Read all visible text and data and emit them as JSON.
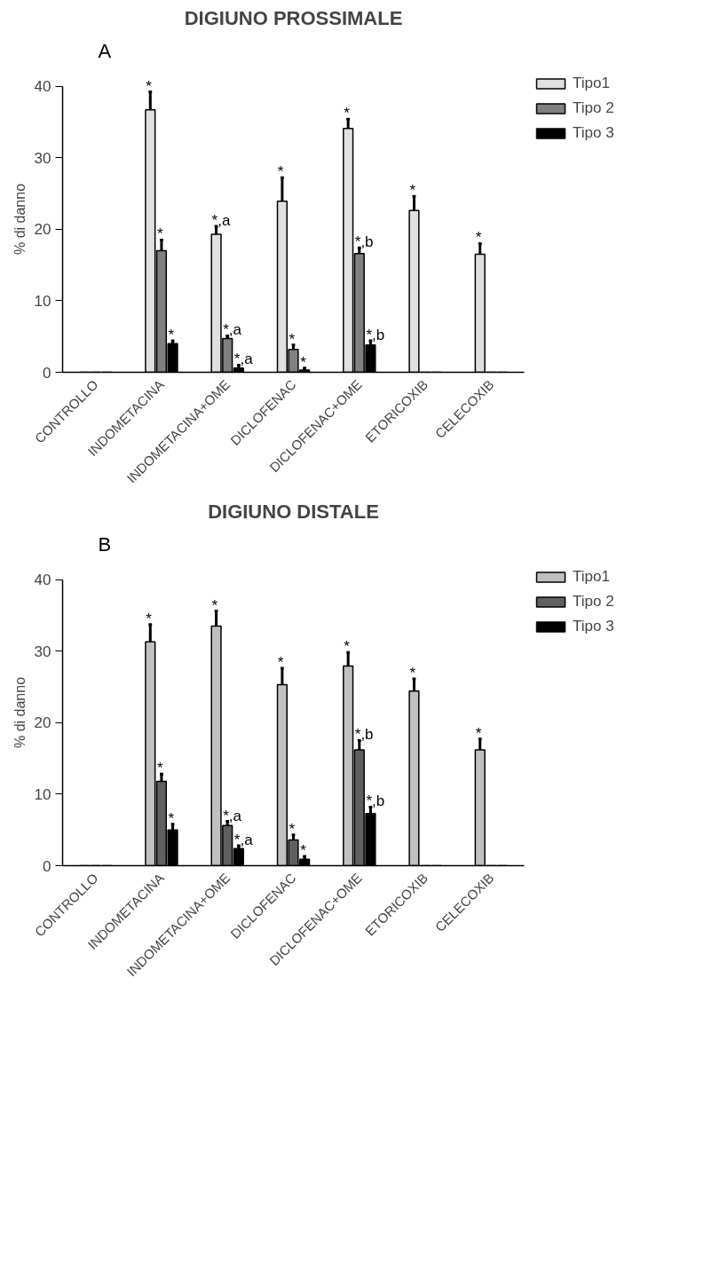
{
  "chart_data": [
    {
      "type": "bar",
      "title": "DIGIUNO PROSSIMALE",
      "annotations": [
        "A"
      ],
      "ylabel": "% di danno",
      "categories": [
        "CONTROLLO",
        "INDOMETACINA",
        "INDOMETACINA+OME",
        "DICLOFENAC",
        "DICLOFENAC+OME",
        "ETORICOXIB",
        "CELECOXIB"
      ],
      "ylim": [
        0,
        40
      ],
      "yticks": [
        0,
        10,
        20,
        30,
        40
      ],
      "grid": false,
      "legend": "right",
      "series": [
        {
          "name": "Tipo1",
          "color": "#e0e0e0",
          "values": [
            0,
            36.7,
            19.3,
            23.9,
            34.1,
            22.6,
            16.5
          ],
          "errors": [
            null,
            [
              36.7,
              39.2
            ],
            [
              19.3,
              20.4
            ],
            [
              23.9,
              27.2
            ],
            [
              34.1,
              35.4
            ],
            [
              22.6,
              24.6
            ],
            [
              16.5,
              18.0
            ]
          ],
          "value_labels": [
            null,
            "*",
            "*,a",
            "*",
            "*",
            "*",
            "*"
          ]
        },
        {
          "name": "Tipo 2",
          "color": "#808080",
          "values": [
            0,
            17.0,
            4.7,
            3.2,
            16.6,
            0,
            0
          ],
          "errors": [
            null,
            [
              17.0,
              18.5
            ],
            [
              4.7,
              5.1
            ],
            [
              3.2,
              3.8
            ],
            [
              16.6,
              17.4
            ],
            null,
            null
          ],
          "value_labels": [
            null,
            "*",
            "*,a",
            "*",
            "*,b",
            null,
            null
          ]
        },
        {
          "name": "Tipo 3",
          "color": "#000000",
          "values": [
            0,
            4.0,
            0.6,
            0.3,
            3.8,
            0,
            0
          ],
          "errors": [
            null,
            [
              4.0,
              4.4
            ],
            [
              0.6,
              1.0
            ],
            [
              0.3,
              0.6
            ],
            [
              3.8,
              4.4
            ],
            null,
            null
          ],
          "value_labels": [
            null,
            "*",
            "*,a",
            "*",
            "*,b",
            null,
            null
          ]
        }
      ]
    },
    {
      "type": "bar",
      "title": "DIGIUNO DISTALE",
      "annotations": [
        "B"
      ],
      "ylabel": "% di danno",
      "categories": [
        "CONTROLLO",
        "INDOMETACINA",
        "INDOMETACINA+OME",
        "DICLOFENAC",
        "DICLOFENAC+OME",
        "ETORICOXIB",
        "CELECOXIB"
      ],
      "ylim": [
        0,
        40
      ],
      "yticks": [
        0,
        10,
        20,
        30,
        40
      ],
      "grid": false,
      "legend": "right",
      "series": [
        {
          "name": "Tipo1",
          "color": "#c0c0c0",
          "values": [
            0,
            31.3,
            33.5,
            25.3,
            27.9,
            24.4,
            16.2
          ],
          "errors": [
            null,
            [
              31.3,
              33.7
            ],
            [
              33.5,
              35.6
            ],
            [
              25.3,
              27.6
            ],
            [
              27.9,
              29.8
            ],
            [
              24.4,
              26.1
            ],
            [
              16.2,
              17.7
            ]
          ],
          "value_labels": [
            null,
            "*",
            "*",
            "*",
            "*",
            "*",
            "*"
          ]
        },
        {
          "name": "Tipo 2",
          "color": "#606060",
          "values": [
            0,
            11.8,
            5.6,
            3.6,
            16.2,
            0,
            0
          ],
          "errors": [
            null,
            [
              11.8,
              12.8
            ],
            [
              5.6,
              6.2
            ],
            [
              3.6,
              4.3
            ],
            [
              16.2,
              17.5
            ],
            null,
            null
          ],
          "value_labels": [
            null,
            "*",
            "*,a",
            "*",
            "*,b",
            null,
            null
          ]
        },
        {
          "name": "Tipo 3",
          "color": "#000000",
          "values": [
            0,
            5.0,
            2.4,
            0.9,
            7.3,
            0,
            0
          ],
          "errors": [
            null,
            [
              5.0,
              5.8
            ],
            [
              2.4,
              2.8
            ],
            [
              0.9,
              1.3
            ],
            [
              7.3,
              8.2
            ],
            null,
            null
          ],
          "value_labels": [
            null,
            "*",
            "*,a",
            "*",
            "*,b",
            null,
            null
          ]
        }
      ]
    }
  ]
}
